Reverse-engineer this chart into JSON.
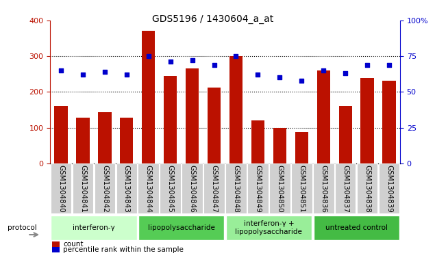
{
  "title": "GDS5196 / 1430604_a_at",
  "samples": [
    "GSM1304840",
    "GSM1304841",
    "GSM1304842",
    "GSM1304843",
    "GSM1304844",
    "GSM1304845",
    "GSM1304846",
    "GSM1304847",
    "GSM1304848",
    "GSM1304849",
    "GSM1304850",
    "GSM1304851",
    "GSM1304836",
    "GSM1304837",
    "GSM1304838",
    "GSM1304839"
  ],
  "counts": [
    160,
    128,
    143,
    127,
    372,
    245,
    265,
    212,
    300,
    120,
    100,
    87,
    260,
    160,
    238,
    232
  ],
  "percentiles": [
    65,
    62,
    64,
    62,
    75,
    71,
    72,
    69,
    75,
    62,
    60,
    58,
    65,
    63,
    69,
    69
  ],
  "groups": [
    {
      "label": "interferon-γ",
      "start": 0,
      "end": 4,
      "color": "#ccffcc"
    },
    {
      "label": "lipopolysaccharide",
      "start": 4,
      "end": 8,
      "color": "#55cc55"
    },
    {
      "label": "interferon-γ +\nlipopolysaccharide",
      "start": 8,
      "end": 12,
      "color": "#99ee99"
    },
    {
      "label": "untreated control",
      "start": 12,
      "end": 16,
      "color": "#44bb44"
    }
  ],
  "bar_color": "#bb1100",
  "dot_color": "#0000cc",
  "left_ylim": [
    0,
    400
  ],
  "right_ylim": [
    0,
    100
  ],
  "left_yticks": [
    0,
    100,
    200,
    300,
    400
  ],
  "right_yticks": [
    0,
    25,
    50,
    75,
    100
  ],
  "right_yticklabels": [
    "0",
    "25",
    "50",
    "75",
    "100%"
  ],
  "grid_values": [
    100,
    200,
    300
  ],
  "protocol_label": "protocol",
  "legend_count": "count",
  "legend_percentile": "percentile rank within the sample",
  "label_fontsize": 7.5,
  "tick_fontsize": 8,
  "title_fontsize": 10
}
